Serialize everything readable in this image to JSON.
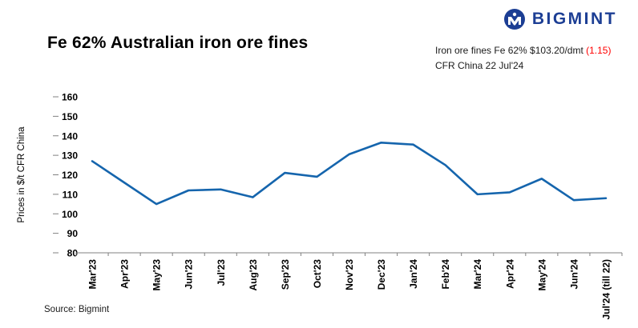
{
  "header": {
    "title": "Fe 62% Australian iron ore fines",
    "logo_text": "BIGMINT",
    "quote_prefix": "Iron ore fines Fe 62% $103.20/dmt ",
    "quote_change": "(1.15)",
    "quote_line2": "CFR China  22 Jul'24"
  },
  "footer": {
    "source": "Source: Bigmint"
  },
  "colors": {
    "line": "#1565ad",
    "brand": "#1c3e94",
    "change": "#ff0000",
    "axis": "#808080",
    "text": "#000000"
  },
  "chart_data": {
    "type": "line",
    "title": "Fe 62% Australian iron ore fines",
    "xlabel": "",
    "ylabel": "Prices in $/t CFR China",
    "ylim": [
      80,
      160
    ],
    "ytick_step": 10,
    "grid": false,
    "legend": false,
    "categories": [
      "Mar'23",
      "Apr'23",
      "May'23",
      "Jun'23",
      "Jul'23",
      "Aug'23",
      "Sep'23",
      "Oct'23",
      "Nov'23",
      "Dec'23",
      "Jan'24",
      "Feb'24",
      "Mar'24",
      "Apr'24",
      "May'24",
      "Jun'24",
      "Jul'24 (till 22)"
    ],
    "series": [
      {
        "name": "Fe 62% Australian iron ore fines CFR China",
        "color": "#1565ad",
        "values": [
          127,
          116,
          105,
          112,
          112.5,
          108.5,
          121,
          119,
          130.5,
          136.5,
          135.5,
          125,
          110,
          111,
          118,
          107,
          108
        ]
      }
    ]
  }
}
